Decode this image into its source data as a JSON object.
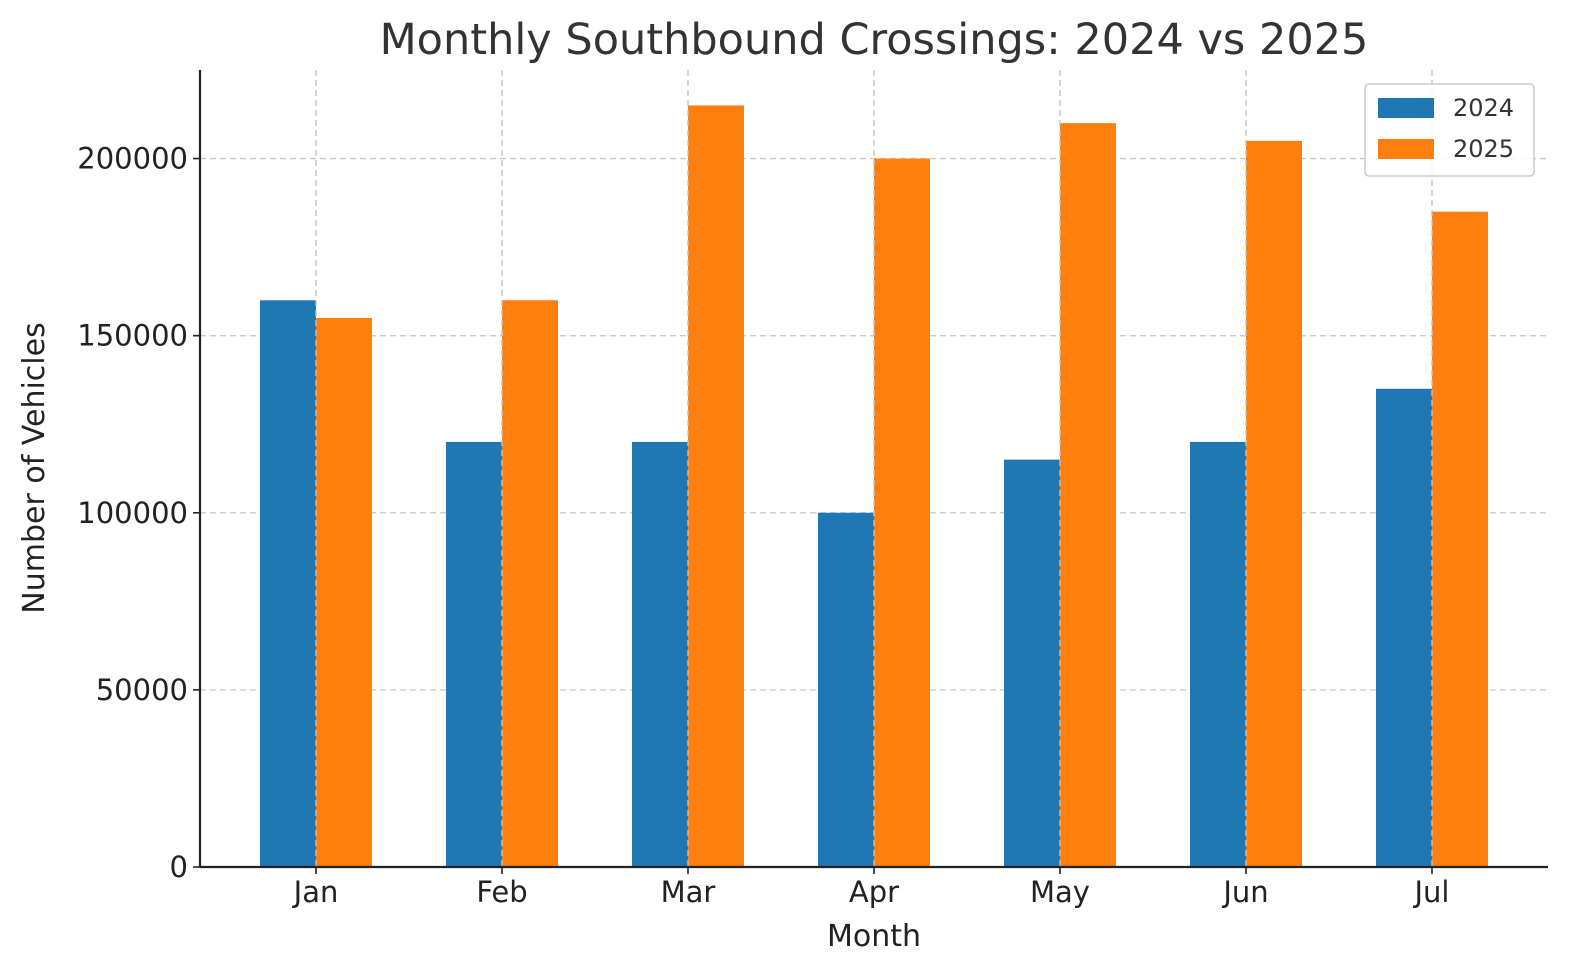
{
  "chart_data": {
    "type": "bar",
    "title": "Monthly Southbound Crossings: 2024 vs 2025",
    "xlabel": "Month",
    "ylabel": "Number of Vehicles",
    "categories": [
      "Jan",
      "Feb",
      "Mar",
      "Apr",
      "May",
      "Jun",
      "Jul"
    ],
    "series": [
      {
        "name": "2024",
        "color": "#1f77b4",
        "values": [
          160000,
          120000,
          120000,
          100000,
          115000,
          120000,
          135000
        ]
      },
      {
        "name": "2025",
        "color": "#ff7f0e",
        "values": [
          155000,
          160000,
          215000,
          200000,
          210000,
          205000,
          185000
        ]
      }
    ],
    "ylim": [
      0,
      225000
    ],
    "yticks": [
      0,
      50000,
      100000,
      150000,
      200000
    ],
    "grid": true,
    "legend": "top-right"
  }
}
